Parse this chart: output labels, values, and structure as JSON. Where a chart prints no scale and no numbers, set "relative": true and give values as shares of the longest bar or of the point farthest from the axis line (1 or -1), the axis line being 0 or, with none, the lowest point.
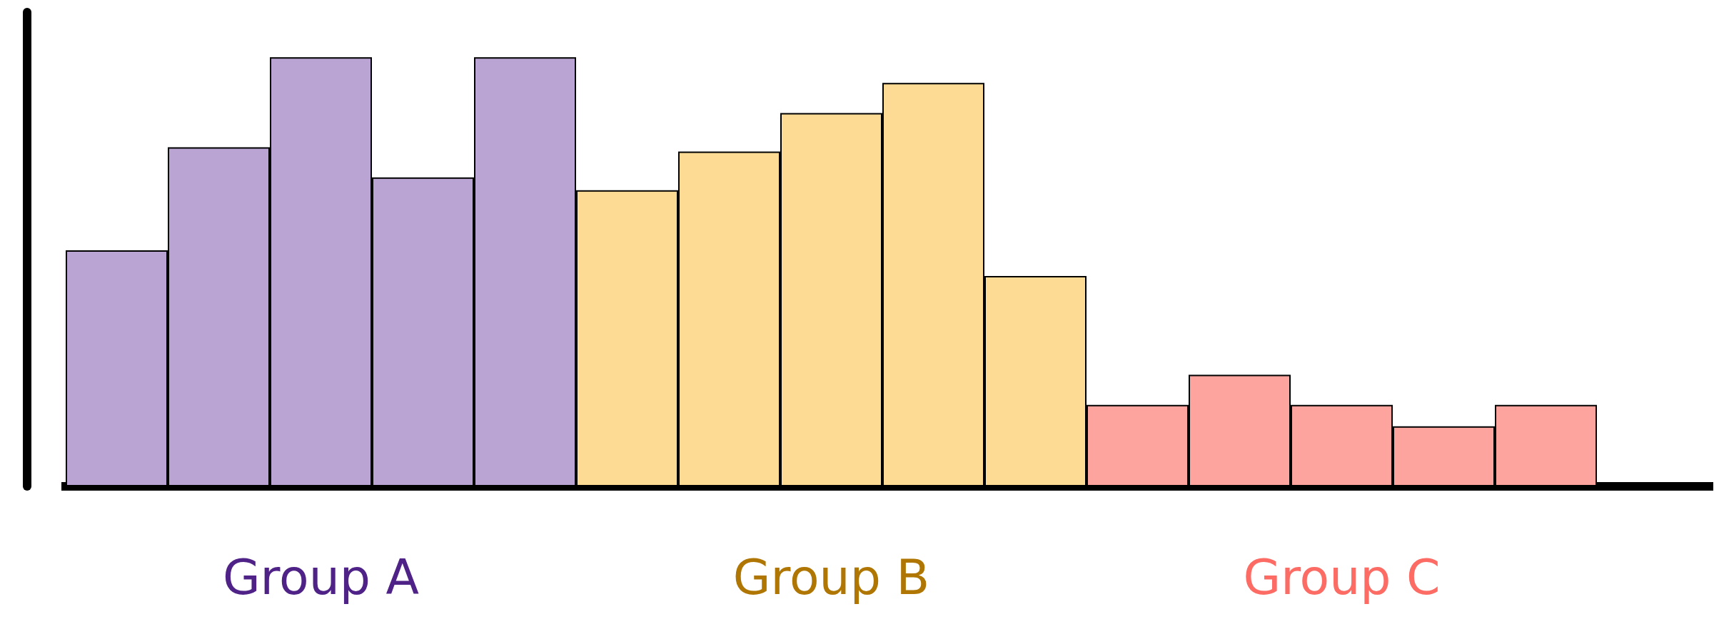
{
  "chart_data": {
    "type": "bar",
    "relative": true,
    "legend": false,
    "grid": false,
    "stacked": true,
    "categories": [
      null,
      null,
      null,
      null,
      null,
      null,
      null,
      null,
      null,
      null,
      null,
      null,
      null,
      null,
      null
    ],
    "series": [
      {
        "name": "Group A",
        "color": "#b9a4d3",
        "values": [
          0.55,
          0.79,
          1,
          0.72,
          1.0,
          null,
          null,
          null,
          null,
          null,
          null,
          null,
          null,
          null,
          null
        ]
      },
      {
        "name": "Group B",
        "color": "#fddb95",
        "values": [
          null,
          null,
          null,
          null,
          null,
          0.69,
          0.78,
          0.87,
          0.94,
          0.49,
          null,
          null,
          null,
          null,
          null
        ]
      },
      {
        "name": "Group C",
        "color": "#fda49f",
        "values": [
          null,
          null,
          null,
          null,
          null,
          null,
          null,
          null,
          null,
          null,
          0.19,
          0.26,
          0.19,
          0.14,
          0.19
        ]
      }
    ]
  }
}
